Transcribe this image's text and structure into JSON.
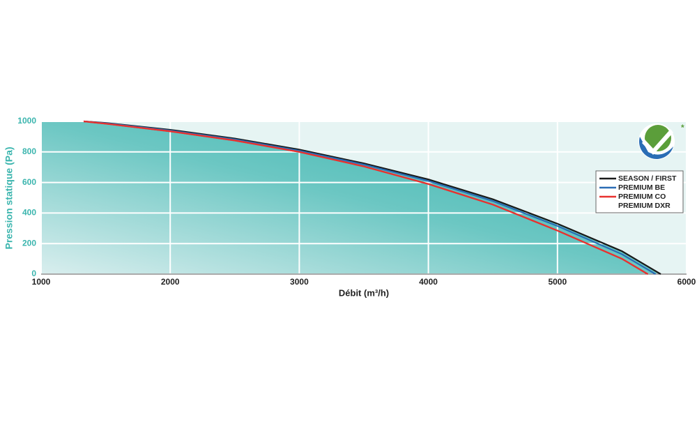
{
  "chart_data": {
    "type": "line",
    "x_label": "Débit (m³/h)",
    "y_label": "Pression statique (Pa)",
    "xlim": [
      1000,
      6000
    ],
    "xticks": [
      1000,
      2000,
      3000,
      4000,
      5000,
      6000
    ],
    "ylim": [
      0,
      1000
    ],
    "yticks": [
      0,
      200,
      400,
      600,
      800,
      1000
    ],
    "grid": true,
    "legend": "right",
    "series": [
      {
        "name": "SEASON / FIRST",
        "color": "#1a1a1a",
        "x": [
          1330,
          1500,
          2000,
          2500,
          3000,
          3500,
          4000,
          4500,
          5000,
          5500,
          5800
        ],
        "values": [
          1000,
          990,
          945,
          888,
          815,
          725,
          620,
          490,
          330,
          150,
          0
        ]
      },
      {
        "name": "PREMIUM BE",
        "color": "#2a6db5",
        "x": [
          1330,
          1500,
          2000,
          2500,
          3000,
          3500,
          4000,
          4500,
          5000,
          5500,
          5760
        ],
        "values": [
          1000,
          988,
          940,
          882,
          808,
          717,
          610,
          478,
          315,
          130,
          0
        ]
      },
      {
        "name": "PREMIUM CO",
        "color": "#e8312f",
        "x": [
          1330,
          1500,
          2000,
          2500,
          3000,
          3500,
          4000,
          4500,
          5000,
          5500,
          5700
        ],
        "values": [
          1000,
          985,
          935,
          875,
          800,
          705,
          590,
          455,
          285,
          100,
          0
        ]
      },
      {
        "name": "PREMIUM DXR",
        "color": "#e8312f",
        "x": [
          1330,
          1500,
          2000,
          2500,
          3000,
          3500,
          4000,
          4500,
          5000,
          5500,
          5700
        ],
        "values": [
          1000,
          985,
          935,
          875,
          800,
          705,
          590,
          455,
          285,
          100,
          0
        ]
      }
    ]
  }
}
